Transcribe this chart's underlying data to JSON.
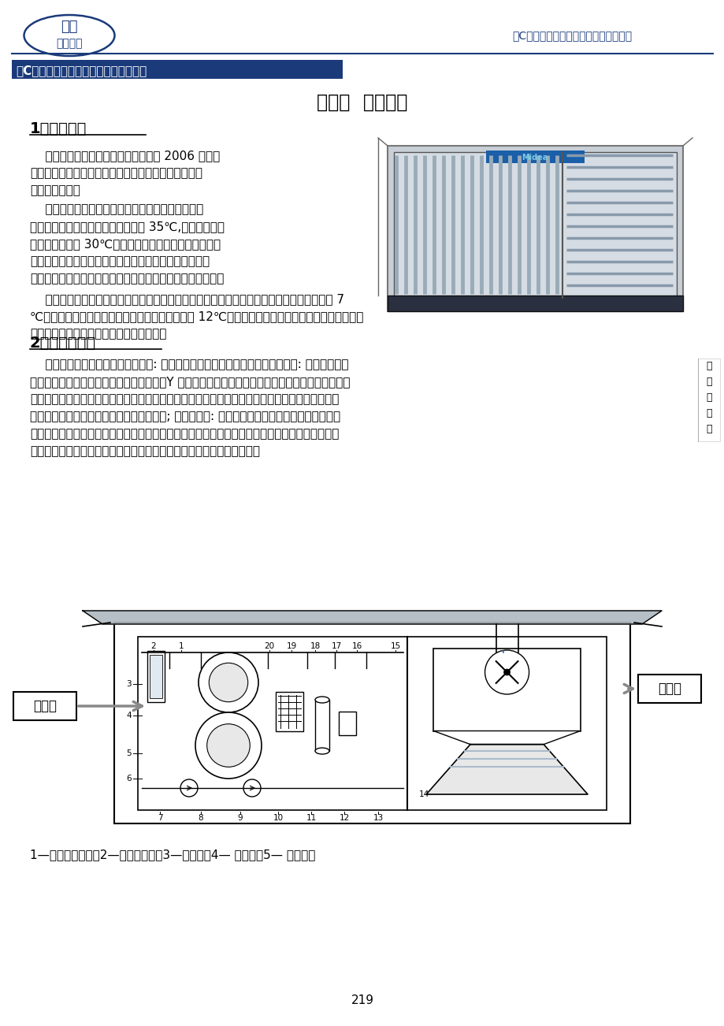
{
  "page_bg": "#ffffff",
  "header_logo_text1": "美的",
  "header_logo_text2": "中央空调",
  "header_right_text": "【C】系列一体化智能空调机组技术手册",
  "header_line_color": "#1a3a7a",
  "top_banner_text": "【C】系列一体化智能空调机组技术手册",
  "top_banner_bg": "#1a3a7a",
  "top_banner_color": "#ffffff",
  "chapter_title": "第一章  产品综述",
  "section1_title": "1、产品简介",
  "para1_lines": [
    "    美的一体化智能空调机组是重庆美的 2006 年新推",
    "出的产品。它将制冷主机与水路系统整合成一体，水路",
    "系统分两部份："
  ],
  "para2_lines": [
    "    一是冷却水系统，冷却塔与螺杆式冷水机组中的冷",
    "凝器连接在一起，冷凝器出水温度为 35℃,将此水通过冷",
    "却塔散热降温至 30℃（冷却塔风机转速可通过变频器来",
    "控制，选配件时请注明），然后通过静电水处理器进行除",
    "垢、杀菌、灭藻，再通过冷却水泵送回至冷凝器，如此循环；"
  ],
  "para3_lines": [
    "    二是冷冻水系统，将螺杆式冷水机组中的蒸发器与冷冻水泵连接在一起，蒸发器出水温度是 7",
    "℃，该温度的冷冻水通过末端设备换热后温度升至 12℃，再通过冷冻水泵返回至蒸发器，在一体机",
    "组箱体外预留管接口，以便接入末端设备。"
  ],
  "section2_title": "2、机组的组成",
  "para4_lines": [
    "    美的一体化智能空调机组主要包括: 主机段和冷却段两个段体。其中主机段含有: 智能控制箱、",
    "螺杆式压缩机、蒸发器、冷凝器、节流阀、Y 型过滤器（可以选配静电水处理器）、冷却水泵、冷冻",
    "水泵、流量控制器、冷冻，冷却水温度传感器、主机散热用风机盘管、检修灯、膨胀水箱、管道，",
    "阀门连接系统、主机段箱体、主机段底座等; 冷却段含有: 横流式冷却塔、冷却段箱体、冷却段底",
    "座等。主机段和冷却段分别加工、检验、合格后分别包装，分别运输到施工现场，再由用户进行简",
    "单的连接组合成一个整体即可。另外，机组还可以配置遮雨棚（选配）。"
  ],
  "caption": "1—螺杆式压缩机；2—智能控制箱；3—蒸发器；4— 节流阀；5— 冷凝器；",
  "page_number": "219",
  "side_label_chars": [
    "一",
    "体",
    "化",
    "机",
    "组"
  ],
  "diagram_label_left": "主机段",
  "diagram_label_right": "冷却段",
  "text_color": "#000000",
  "title_color": "#1a3a7a",
  "body_fontsize": 11,
  "section_fontsize": 14,
  "chapter_fontsize": 17
}
